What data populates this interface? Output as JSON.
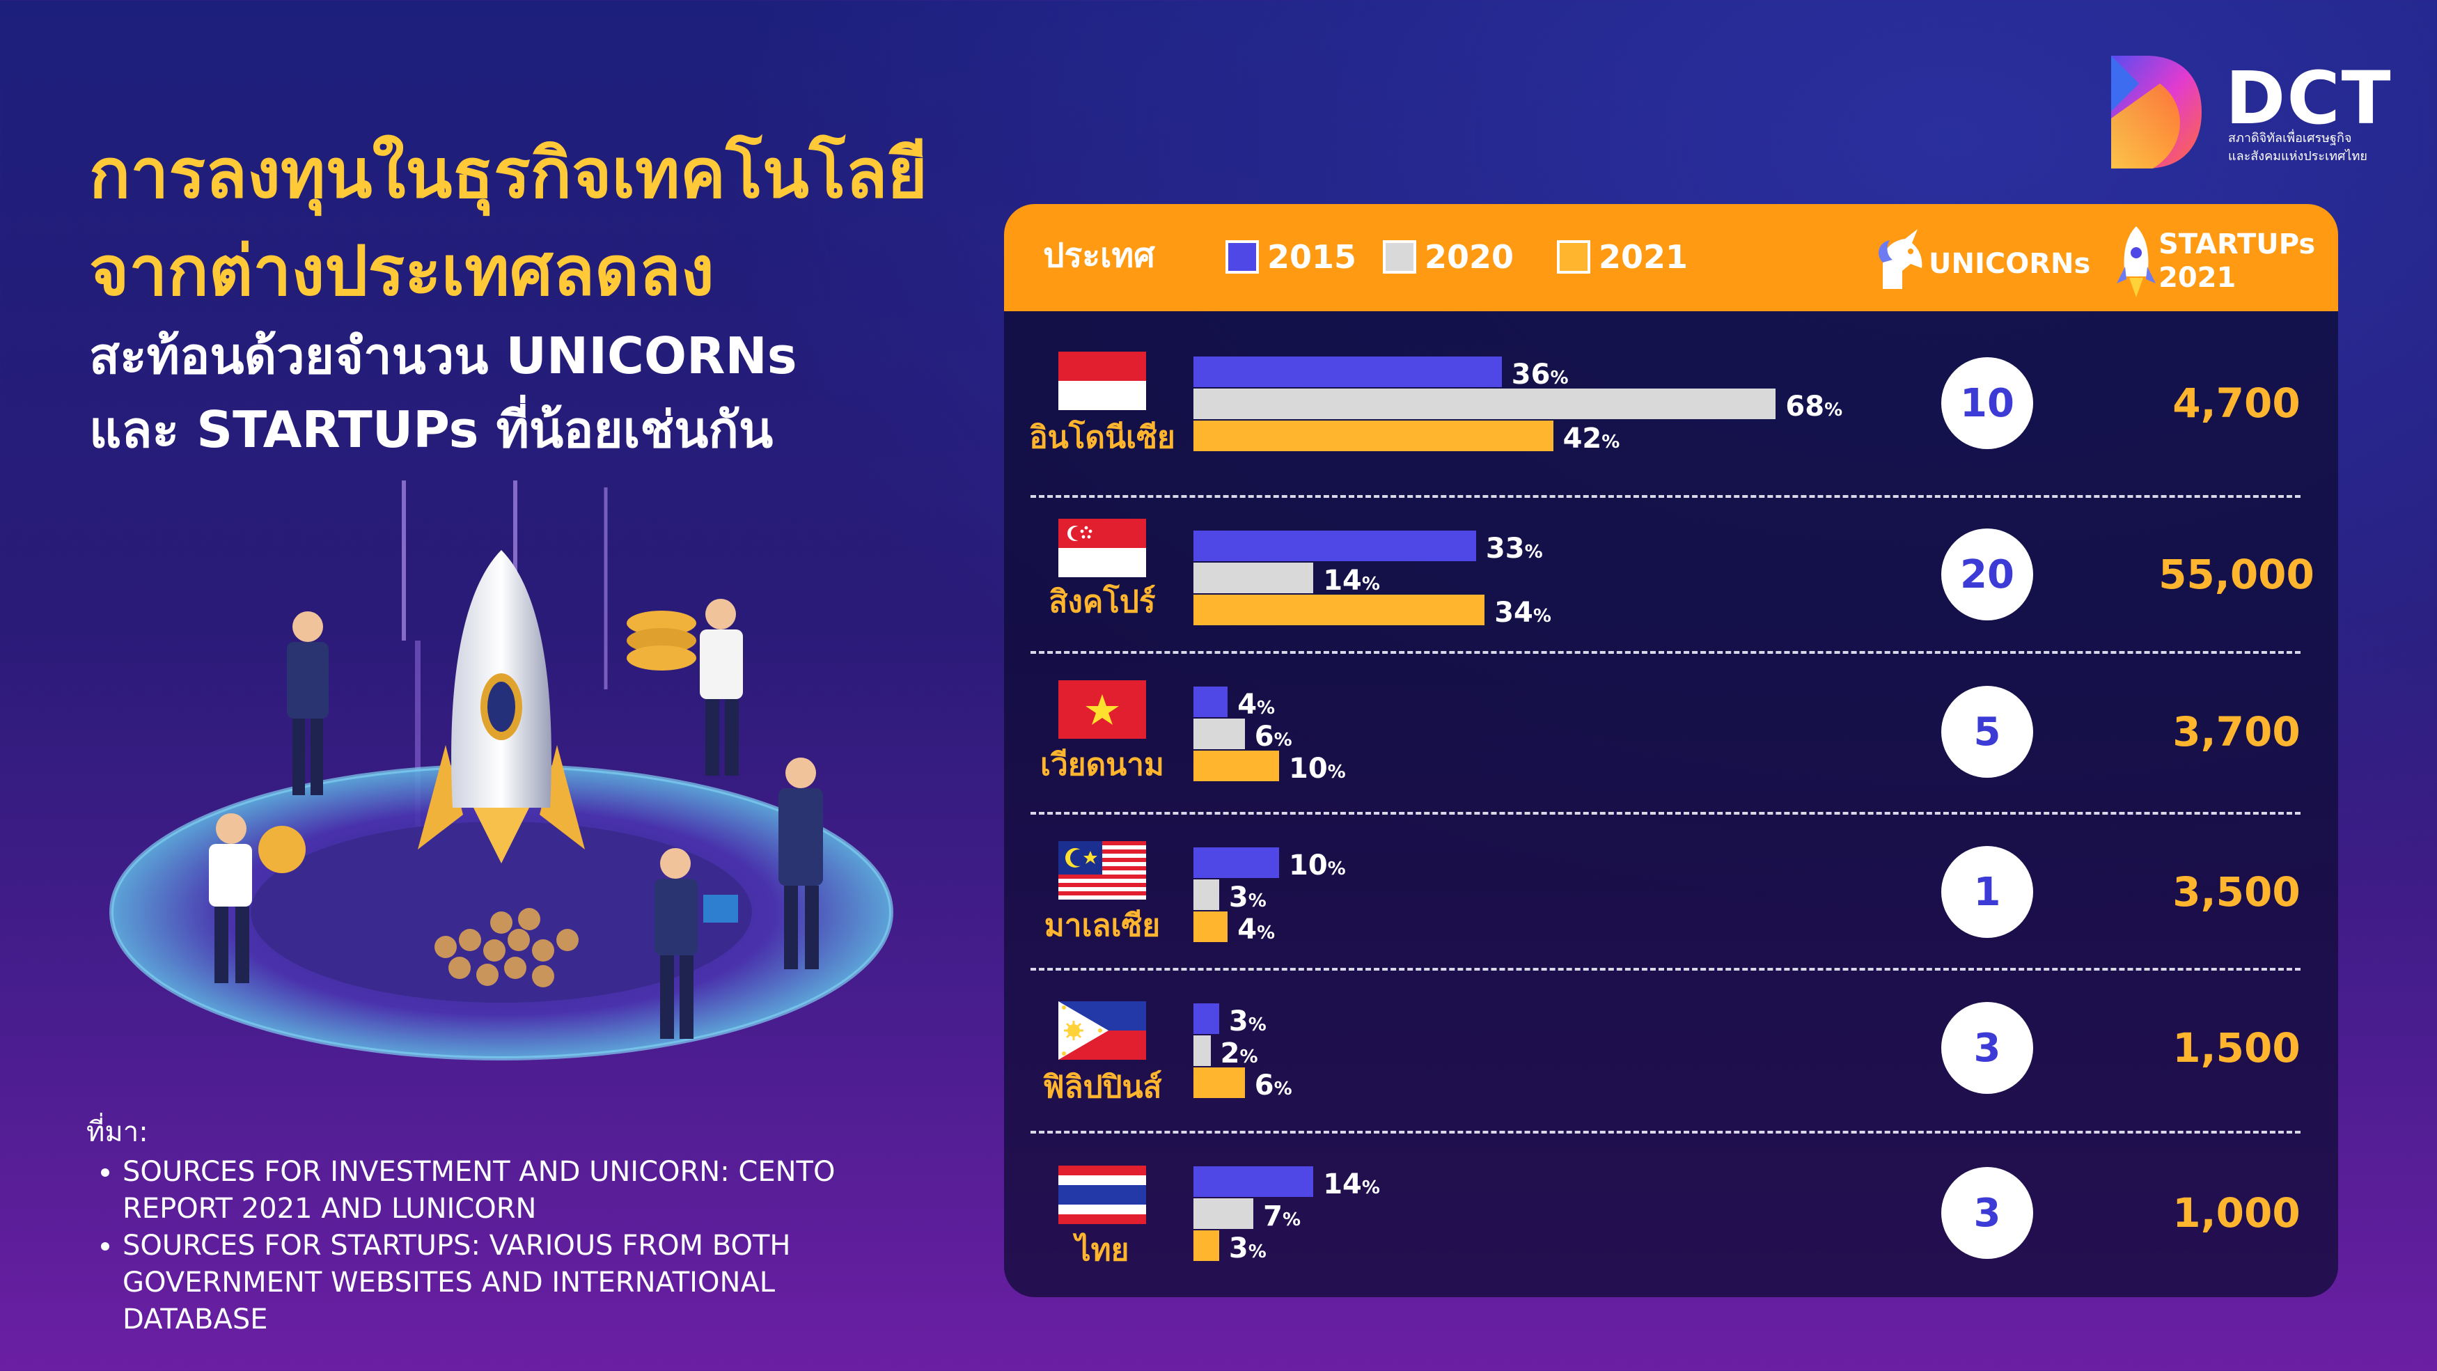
{
  "title_lines": [
    "การลงทุนในธุรกิจเทคโนโลยี",
    "จากต่างประเทศลดลง"
  ],
  "subtitle_lines": [
    "สะท้อนด้วยจำนวน UNICORNs",
    "และ STARTUPs ที่น้อยเช่นกัน"
  ],
  "brand": {
    "name": "DCT",
    "tagline_lines": [
      "สภาดิจิทัลเพื่อเศรษฐกิจ",
      "และสังคมแห่งประเทศไทย"
    ]
  },
  "source": {
    "heading": "ที่มา:",
    "items": [
      "SOURCES FOR INVESTMENT AND UNICORN: CENTO REPORT 2021 AND LUNICORN",
      "SOURCES FOR STARTUPS: VARIOUS FROM BOTH GOVERNMENT WEBSITES AND INTERNATIONAL DATABASE"
    ]
  },
  "table_header": {
    "country": "ประเทศ",
    "unicorns": "UNICORNs",
    "startups_lines": [
      "STARTUPs",
      "2021"
    ]
  },
  "colors": {
    "s2015": "#4f48e6",
    "s2020": "#d9d9d9",
    "s2021": "#ffb52e",
    "header": "#ff9a12",
    "accent": "#ffc937"
  },
  "icons": [
    "unicorn-icon",
    "rocket-icon",
    "dct-logo"
  ],
  "chart_data": {
    "type": "bar",
    "orientation": "horizontal",
    "categories": [
      "อินโดนีเซีย",
      "สิงคโปร์",
      "เวียดนาม",
      "มาเลเซีย",
      "ฟิลิปปินส์",
      "ไทย"
    ],
    "unit": "%",
    "xlim": [
      0,
      70
    ],
    "grid": false,
    "legend_position": "top",
    "series": [
      {
        "name": "2015",
        "values": [
          36,
          33,
          4,
          10,
          3,
          14
        ]
      },
      {
        "name": "2020",
        "values": [
          68,
          14,
          6,
          3,
          2,
          7
        ]
      },
      {
        "name": "2021",
        "values": [
          42,
          34,
          10,
          4,
          6,
          3
        ]
      }
    ],
    "unicorns": [
      10,
      20,
      5,
      1,
      3,
      3
    ],
    "startups_2021": [
      "4,700",
      "55,000",
      "3,700",
      "3,500",
      "1,500",
      "1,000"
    ]
  }
}
